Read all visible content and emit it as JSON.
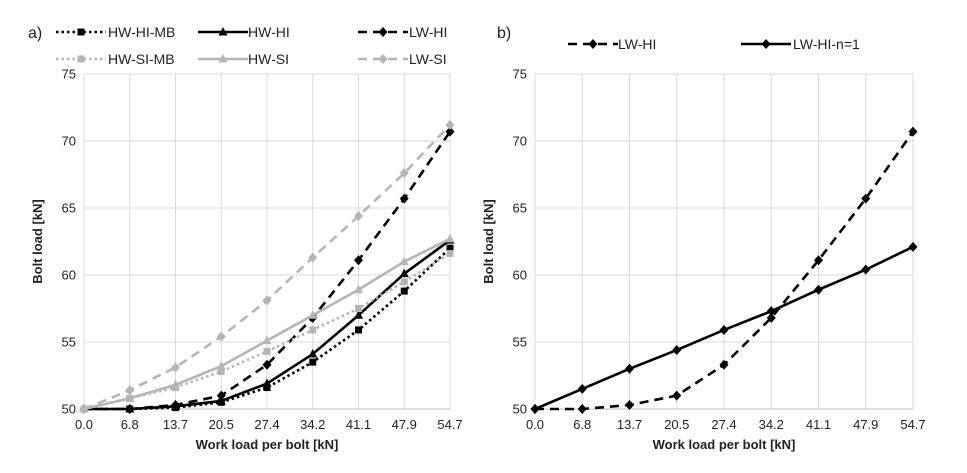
{
  "chart_data": [
    {
      "panel": "a)",
      "type": "line",
      "xlabel": "Work load per bolt [kN]",
      "ylabel": "Bolt load [kN]",
      "ylim": [
        50,
        75
      ],
      "yticks": [
        "50",
        "55",
        "60",
        "65",
        "70",
        "75"
      ],
      "categories": [
        "0.0",
        "6.8",
        "13.7",
        "20.5",
        "27.4",
        "34.2",
        "41.1",
        "47.9",
        "54.7"
      ],
      "grid": true,
      "legend": "top",
      "series": [
        {
          "name": "HW-HI-MB",
          "color": "#000000",
          "dash": "dotted",
          "marker": "square",
          "values": [
            50.0,
            50.0,
            50.1,
            50.5,
            51.6,
            53.5,
            55.9,
            58.8,
            62.0
          ]
        },
        {
          "name": "HW-HI",
          "color": "#000000",
          "dash": "solid",
          "marker": "triangle",
          "values": [
            50.0,
            50.0,
            50.2,
            50.6,
            51.9,
            54.1,
            57.0,
            60.1,
            62.6
          ]
        },
        {
          "name": "LW-HI",
          "color": "#000000",
          "dash": "dashed",
          "marker": "diamond",
          "values": [
            50.0,
            50.0,
            50.3,
            51.0,
            53.3,
            56.8,
            61.1,
            65.7,
            70.7
          ]
        },
        {
          "name": "HW-SI-MB",
          "color": "#b5b5b5",
          "dash": "dotted",
          "marker": "square",
          "values": [
            50.0,
            50.8,
            51.6,
            52.8,
            54.3,
            55.9,
            57.5,
            59.5,
            61.6
          ]
        },
        {
          "name": "HW-SI",
          "color": "#b5b5b5",
          "dash": "solid",
          "marker": "triangle",
          "values": [
            50.0,
            50.8,
            51.8,
            53.2,
            55.1,
            57.0,
            58.9,
            61.0,
            62.7
          ]
        },
        {
          "name": "LW-SI",
          "color": "#b5b5b5",
          "dash": "dashed",
          "marker": "diamond",
          "values": [
            50.0,
            51.4,
            53.1,
            55.4,
            58.1,
            61.3,
            64.4,
            67.6,
            71.2
          ]
        }
      ]
    },
    {
      "panel": "b)",
      "type": "line",
      "xlabel": "Work load per bolt [kN]",
      "ylabel": "Bolt load [kN]",
      "ylim": [
        50,
        75
      ],
      "yticks": [
        "50",
        "55",
        "60",
        "65",
        "70",
        "75"
      ],
      "categories": [
        "0.0",
        "6.8",
        "13.7",
        "20.5",
        "27.4",
        "34.2",
        "41.1",
        "47.9",
        "54.7"
      ],
      "grid": true,
      "legend": "top",
      "series": [
        {
          "name": "LW-HI",
          "color": "#000000",
          "dash": "dashed",
          "marker": "diamond",
          "values": [
            50.0,
            50.0,
            50.3,
            51.0,
            53.3,
            56.8,
            61.1,
            65.7,
            70.7
          ]
        },
        {
          "name": "LW-HI-n=1",
          "color": "#000000",
          "dash": "solid",
          "marker": "diamond",
          "values": [
            50.0,
            51.5,
            53.0,
            54.4,
            55.9,
            57.3,
            58.9,
            60.4,
            62.1
          ]
        }
      ]
    }
  ]
}
